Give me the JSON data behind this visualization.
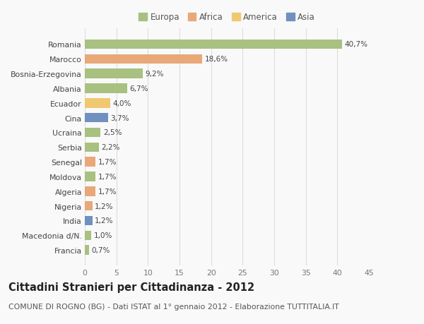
{
  "countries": [
    "Romania",
    "Marocco",
    "Bosnia-Erzegovina",
    "Albania",
    "Ecuador",
    "Cina",
    "Ucraina",
    "Serbia",
    "Senegal",
    "Moldova",
    "Algeria",
    "Nigeria",
    "India",
    "Macedonia d/N.",
    "Francia"
  ],
  "values": [
    40.7,
    18.6,
    9.2,
    6.7,
    4.0,
    3.7,
    2.5,
    2.2,
    1.7,
    1.7,
    1.7,
    1.2,
    1.2,
    1.0,
    0.7
  ],
  "labels": [
    "40,7%",
    "18,6%",
    "9,2%",
    "6,7%",
    "4,0%",
    "3,7%",
    "2,5%",
    "2,2%",
    "1,7%",
    "1,7%",
    "1,7%",
    "1,2%",
    "1,2%",
    "1,0%",
    "0,7%"
  ],
  "continents": [
    "Europa",
    "Africa",
    "Europa",
    "Europa",
    "America",
    "Asia",
    "Europa",
    "Europa",
    "Africa",
    "Europa",
    "Africa",
    "Africa",
    "Asia",
    "Europa",
    "Europa"
  ],
  "colors": {
    "Europa": "#a8c080",
    "Africa": "#e8a878",
    "America": "#f0c870",
    "Asia": "#7090c0"
  },
  "legend_order": [
    "Europa",
    "Africa",
    "America",
    "Asia"
  ],
  "xlim": [
    0,
    45
  ],
  "xticks": [
    0,
    5,
    10,
    15,
    20,
    25,
    30,
    35,
    40,
    45
  ],
  "title": "Cittadini Stranieri per Cittadinanza - 2012",
  "subtitle": "COMUNE DI ROGNO (BG) - Dati ISTAT al 1° gennaio 2012 - Elaborazione TUTTITALIA.IT",
  "background_color": "#f9f9f9",
  "bar_height": 0.65,
  "title_fontsize": 10.5,
  "subtitle_fontsize": 7.8,
  "label_fontsize": 7.5,
  "tick_fontsize": 7.8,
  "legend_fontsize": 8.5
}
